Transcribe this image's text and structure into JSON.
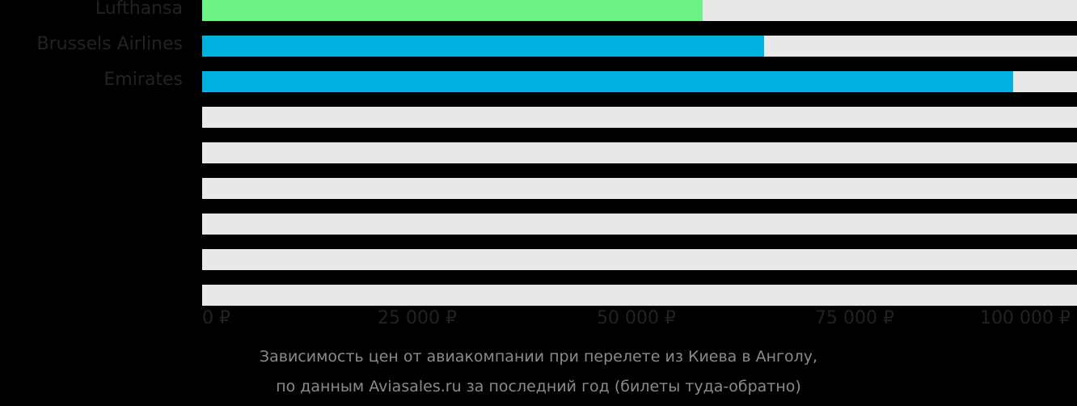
{
  "chart_data": {
    "type": "bar",
    "orientation": "horizontal",
    "title": "Зависимость цен от авиакомпании при перелете из Киева в Анголу, по данным Aviasales.ru за последний год (билеты туда-обратно)",
    "categories": [
      "Lufthansa",
      "Brussels Airlines",
      "Emirates",
      "",
      "",
      "",
      "",
      "",
      ""
    ],
    "values": [
      57200,
      64200,
      92700,
      null,
      null,
      null,
      null,
      null,
      null
    ],
    "bar_colors": [
      "#6ef287",
      "#00b0de",
      "#00b0de"
    ],
    "track_color": "#e8e8e8",
    "xlabel": "",
    "ylabel": "",
    "xlim": [
      0,
      100000
    ],
    "x_ticks": [
      0,
      25000,
      50000,
      75000,
      100000
    ],
    "x_tick_labels": [
      "0 ₽",
      "25 000 ₽",
      "50 000 ₽",
      "75 000 ₽",
      "100 000 ₽"
    ],
    "grid": false,
    "legend": null
  },
  "rows": [
    {
      "label": "Lufthansa",
      "value": 57200,
      "color": "#6ef287"
    },
    {
      "label": "Brussels Airlines",
      "value": 64200,
      "color": "#00b0de"
    },
    {
      "label": "Emirates",
      "value": 92700,
      "color": "#00b0de"
    },
    {
      "label": "",
      "value": 0,
      "color": "#00b0de"
    },
    {
      "label": "",
      "value": 0,
      "color": "#00b0de"
    },
    {
      "label": "",
      "value": 0,
      "color": "#00b0de"
    },
    {
      "label": "",
      "value": 0,
      "color": "#00b0de"
    },
    {
      "label": "",
      "value": 0,
      "color": "#00b0de"
    },
    {
      "label": "",
      "value": 0,
      "color": "#00b0de"
    }
  ],
  "axis": {
    "ticks": [
      "0 ₽",
      "25 000 ₽",
      "50 000 ₽",
      "75 000 ₽",
      "100 000 ₽"
    ]
  },
  "caption": {
    "line1": "Зависимость цен от авиакомпании при перелете из Киева в Анголу,",
    "line2": "по данным Aviasales.ru за последний год (билеты туда-обратно)"
  }
}
